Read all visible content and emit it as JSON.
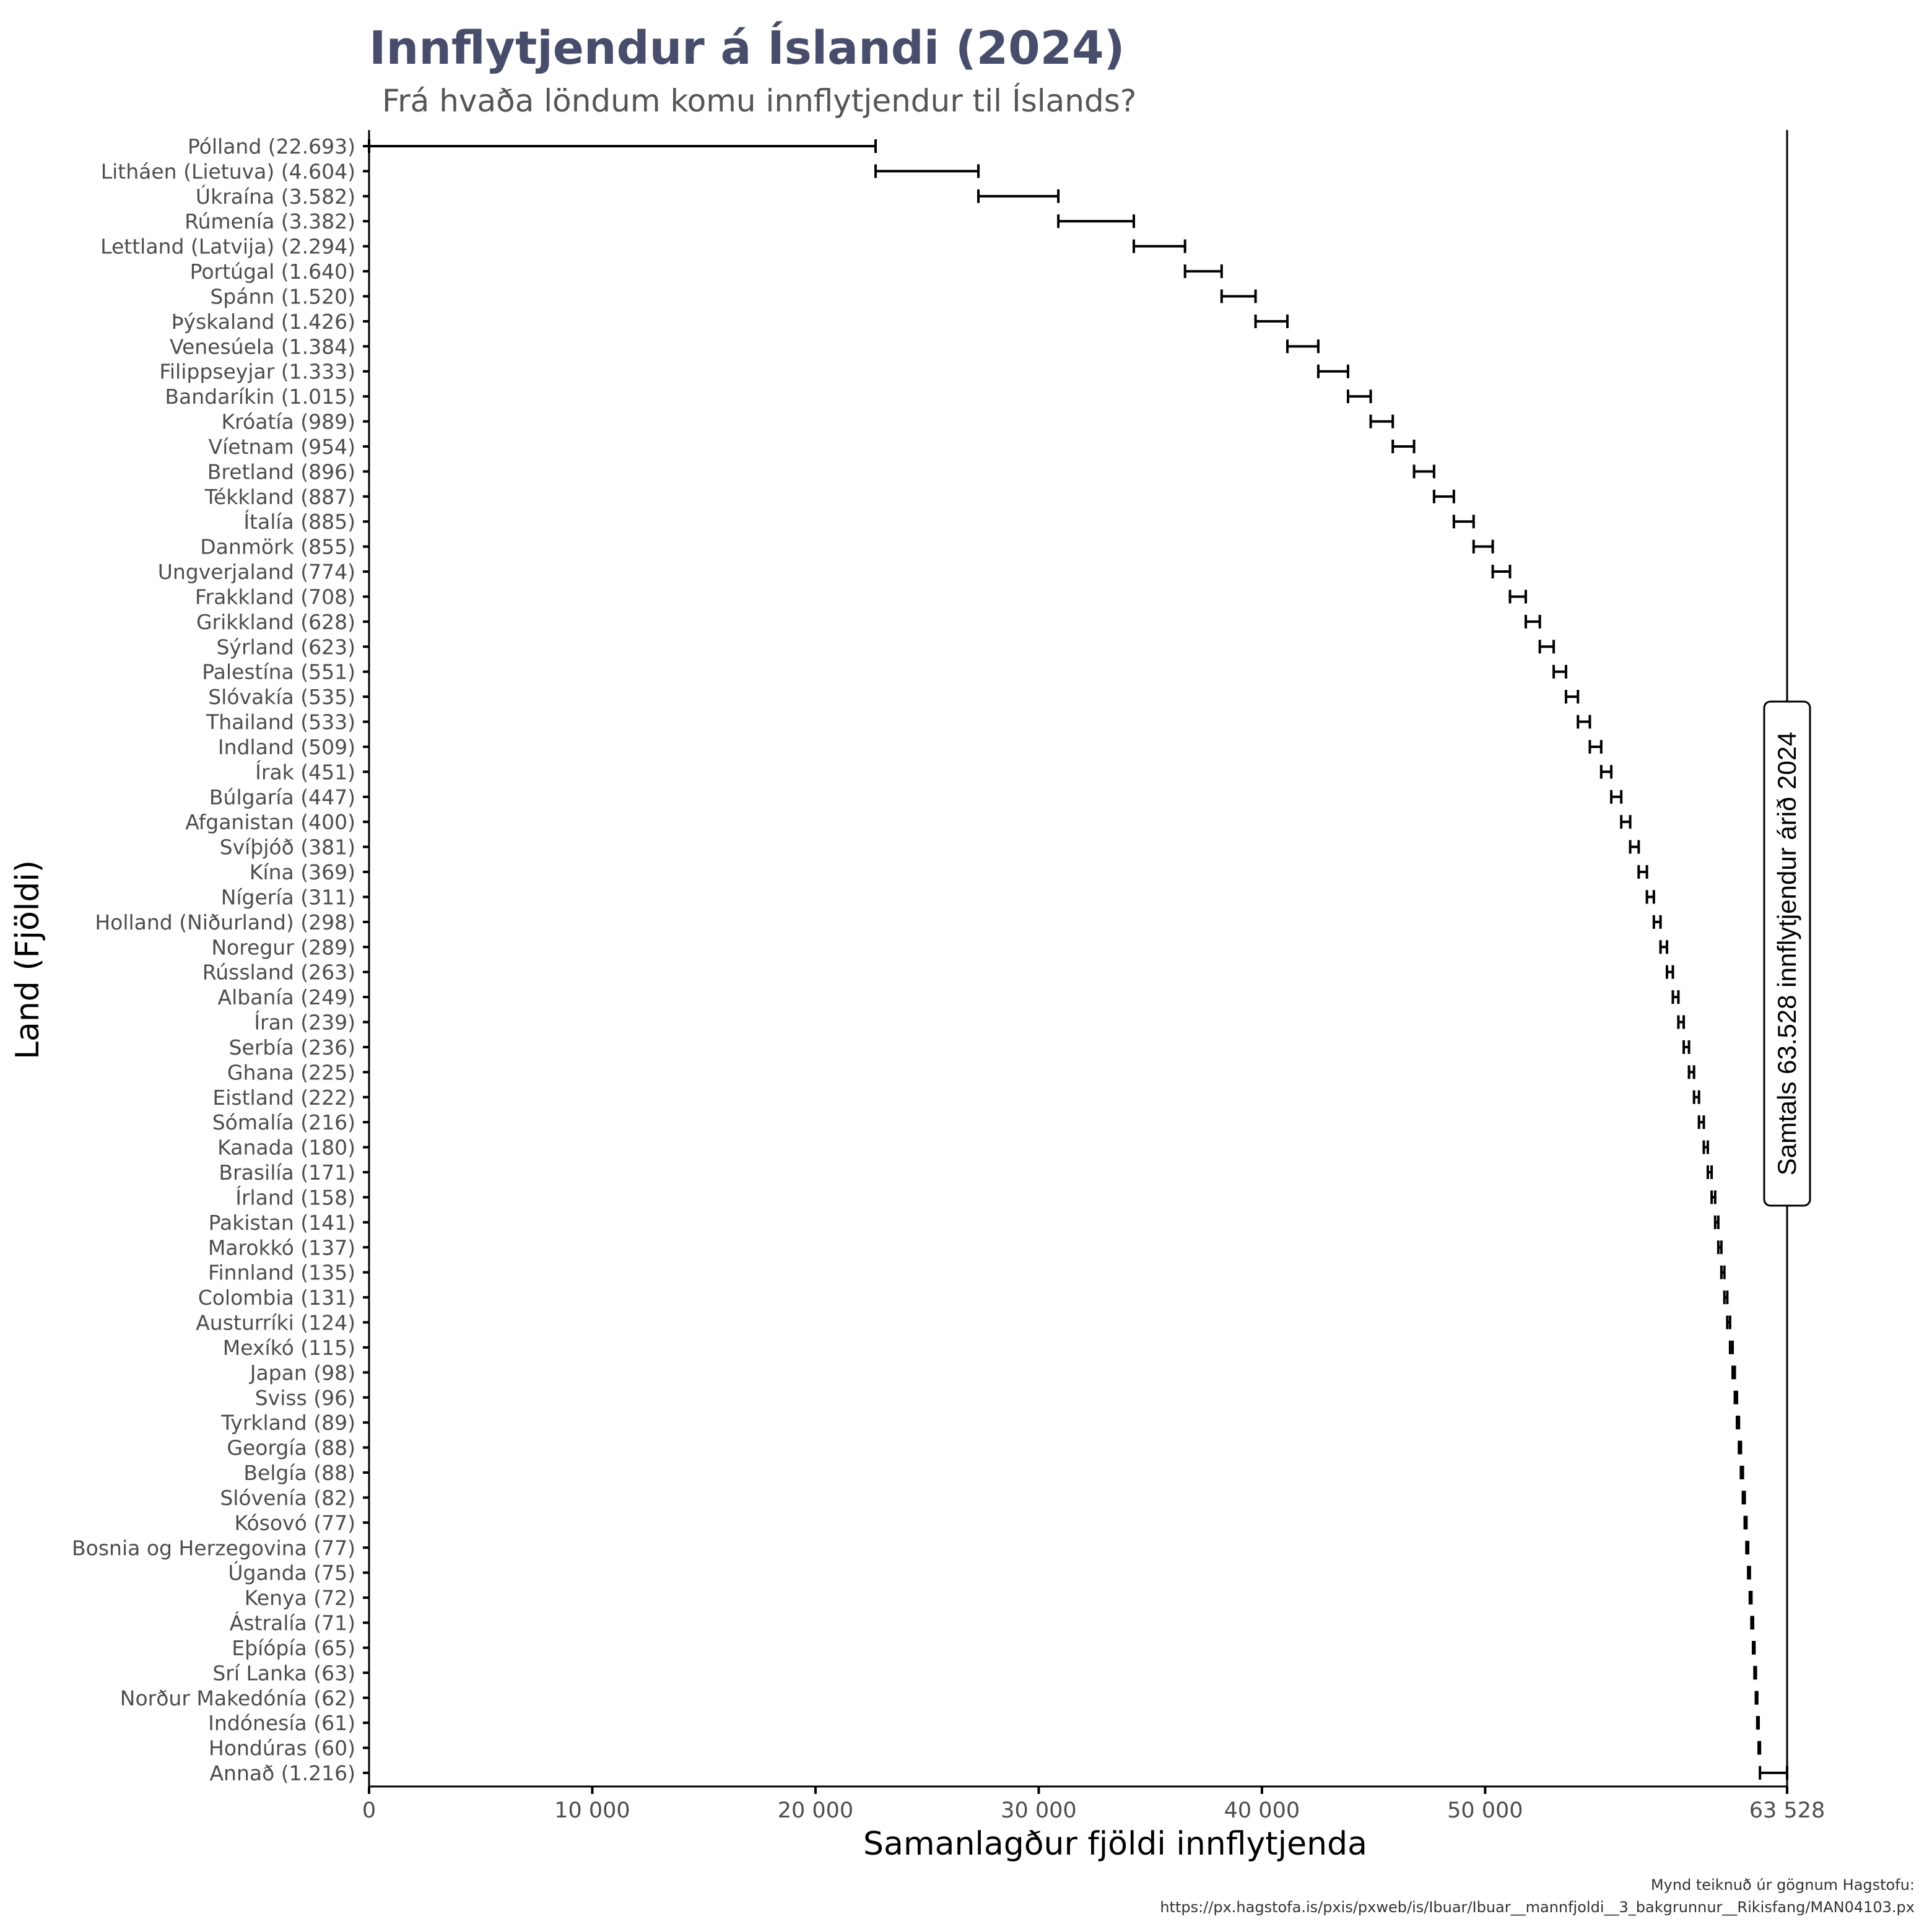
{
  "chart_data": {
    "type": "bar",
    "subtype": "waterfall",
    "title": "Innflytjendur á Íslandi (2024)",
    "subtitle": "Frá hvaða löndum komu innflytjendur til Íslands?",
    "xlabel": "Samanlagður fjöldi innflytjenda",
    "ylabel": "Land (Fjöldi)",
    "xlim": [
      0,
      63528
    ],
    "x_ticks": [
      0,
      10000,
      20000,
      30000,
      40000,
      50000,
      63528
    ],
    "x_tick_labels": [
      "0",
      "10 000",
      "20 000",
      "30 000",
      "40 000",
      "50 000",
      "63 528"
    ],
    "total": 63528,
    "annotation": "Samtals 63.528 innflytjendur árið 2024",
    "caption": [
      "Mynd teiknuð úr gögnum Hagstofu:",
      "https://px.hagstofa.is/pxis/pxweb/is/Ibuar/Ibuar__mannfjoldi__3_bakgrunnur__Rikisfang/MAN04103.px"
    ],
    "grid": false,
    "categories": [
      {
        "name": "Pólland",
        "value": 22693,
        "label": "Pólland (22.693)"
      },
      {
        "name": "Litháen (Lietuva)",
        "value": 4604,
        "label": "Litháen (Lietuva) (4.604)"
      },
      {
        "name": "Úkraína",
        "value": 3582,
        "label": "Úkraína (3.582)"
      },
      {
        "name": "Rúmenía",
        "value": 3382,
        "label": "Rúmenía (3.382)"
      },
      {
        "name": "Lettland (Latvija)",
        "value": 2294,
        "label": "Lettland (Latvija) (2.294)"
      },
      {
        "name": "Portúgal",
        "value": 1640,
        "label": "Portúgal (1.640)"
      },
      {
        "name": "Spánn",
        "value": 1520,
        "label": "Spánn (1.520)"
      },
      {
        "name": "Þýskaland",
        "value": 1426,
        "label": "Þýskaland (1.426)"
      },
      {
        "name": "Venesúela",
        "value": 1384,
        "label": "Venesúela (1.384)"
      },
      {
        "name": "Filippseyjar",
        "value": 1333,
        "label": "Filippseyjar (1.333)"
      },
      {
        "name": "Bandaríkin",
        "value": 1015,
        "label": "Bandaríkin (1.015)"
      },
      {
        "name": "Króatía",
        "value": 989,
        "label": "Króatía (989)"
      },
      {
        "name": "Víetnam",
        "value": 954,
        "label": "Víetnam (954)"
      },
      {
        "name": "Bretland",
        "value": 896,
        "label": "Bretland (896)"
      },
      {
        "name": "Tékkland",
        "value": 887,
        "label": "Tékkland (887)"
      },
      {
        "name": "Ítalía",
        "value": 885,
        "label": "Ítalía (885)"
      },
      {
        "name": "Danmörk",
        "value": 855,
        "label": "Danmörk (855)"
      },
      {
        "name": "Ungverjaland",
        "value": 774,
        "label": "Ungverjaland (774)"
      },
      {
        "name": "Frakkland",
        "value": 708,
        "label": "Frakkland (708)"
      },
      {
        "name": "Grikkland",
        "value": 628,
        "label": "Grikkland (628)"
      },
      {
        "name": "Sýrland",
        "value": 623,
        "label": "Sýrland (623)"
      },
      {
        "name": "Palestína",
        "value": 551,
        "label": "Palestína (551)"
      },
      {
        "name": "Slóvakía",
        "value": 535,
        "label": "Slóvakía (535)"
      },
      {
        "name": "Thailand",
        "value": 533,
        "label": "Thailand (533)"
      },
      {
        "name": "Indland",
        "value": 509,
        "label": "Indland (509)"
      },
      {
        "name": "Írak",
        "value": 451,
        "label": "Írak (451)"
      },
      {
        "name": "Búlgaría",
        "value": 447,
        "label": "Búlgaría (447)"
      },
      {
        "name": "Afganistan",
        "value": 400,
        "label": "Afganistan (400)"
      },
      {
        "name": "Svíþjóð",
        "value": 381,
        "label": "Svíþjóð (381)"
      },
      {
        "name": "Kína",
        "value": 369,
        "label": "Kína (369)"
      },
      {
        "name": "Nígería",
        "value": 311,
        "label": "Nígería (311)"
      },
      {
        "name": "Holland (Niðurland)",
        "value": 298,
        "label": "Holland (Niðurland) (298)"
      },
      {
        "name": "Noregur",
        "value": 289,
        "label": "Noregur (289)"
      },
      {
        "name": "Rússland",
        "value": 263,
        "label": "Rússland (263)"
      },
      {
        "name": "Albanía",
        "value": 249,
        "label": "Albanía (249)"
      },
      {
        "name": "Íran",
        "value": 239,
        "label": "Íran (239)"
      },
      {
        "name": "Serbía",
        "value": 236,
        "label": "Serbía (236)"
      },
      {
        "name": "Ghana",
        "value": 225,
        "label": "Ghana (225)"
      },
      {
        "name": "Eistland",
        "value": 222,
        "label": "Eistland (222)"
      },
      {
        "name": "Sómalía",
        "value": 216,
        "label": "Sómalía (216)"
      },
      {
        "name": "Kanada",
        "value": 180,
        "label": "Kanada (180)"
      },
      {
        "name": "Brasilía",
        "value": 171,
        "label": "Brasilía (171)"
      },
      {
        "name": "Írland",
        "value": 158,
        "label": "Írland (158)"
      },
      {
        "name": "Pakistan",
        "value": 141,
        "label": "Pakistan (141)"
      },
      {
        "name": "Marokkó",
        "value": 137,
        "label": "Marokkó (137)"
      },
      {
        "name": "Finnland",
        "value": 135,
        "label": "Finnland (135)"
      },
      {
        "name": "Colombia",
        "value": 131,
        "label": "Colombia (131)"
      },
      {
        "name": "Austurríki",
        "value": 124,
        "label": "Austurríki (124)"
      },
      {
        "name": "Mexíkó",
        "value": 115,
        "label": "Mexíkó (115)"
      },
      {
        "name": "Japan",
        "value": 98,
        "label": "Japan (98)"
      },
      {
        "name": "Sviss",
        "value": 96,
        "label": "Sviss (96)"
      },
      {
        "name": "Tyrkland",
        "value": 89,
        "label": "Tyrkland (89)"
      },
      {
        "name": "Georgía",
        "value": 88,
        "label": "Georgía (88)"
      },
      {
        "name": "Belgía",
        "value": 88,
        "label": "Belgía (88)"
      },
      {
        "name": "Slóvenía",
        "value": 82,
        "label": "Slóvenía (82)"
      },
      {
        "name": "Kósovó",
        "value": 77,
        "label": "Kósovó (77)"
      },
      {
        "name": "Bosnia og Herzegovina",
        "value": 77,
        "label": "Bosnia og Herzegovina (77)"
      },
      {
        "name": "Úganda",
        "value": 75,
        "label": "Úganda (75)"
      },
      {
        "name": "Kenya",
        "value": 72,
        "label": "Kenya (72)"
      },
      {
        "name": "Ástralía",
        "value": 71,
        "label": "Ástralía (71)"
      },
      {
        "name": "Eþíópía",
        "value": 65,
        "label": "Eþíópía (65)"
      },
      {
        "name": "Srí Lanka",
        "value": 63,
        "label": "Srí Lanka (63)"
      },
      {
        "name": "Norður Makedónía",
        "value": 62,
        "label": "Norður Makedónía (62)"
      },
      {
        "name": "Indónesía",
        "value": 61,
        "label": "Indónesía (61)"
      },
      {
        "name": "Hondúras",
        "value": 60,
        "label": "Hondúras (60)"
      },
      {
        "name": "Annað",
        "value": 1216,
        "label": "Annað (1.216)"
      }
    ]
  }
}
